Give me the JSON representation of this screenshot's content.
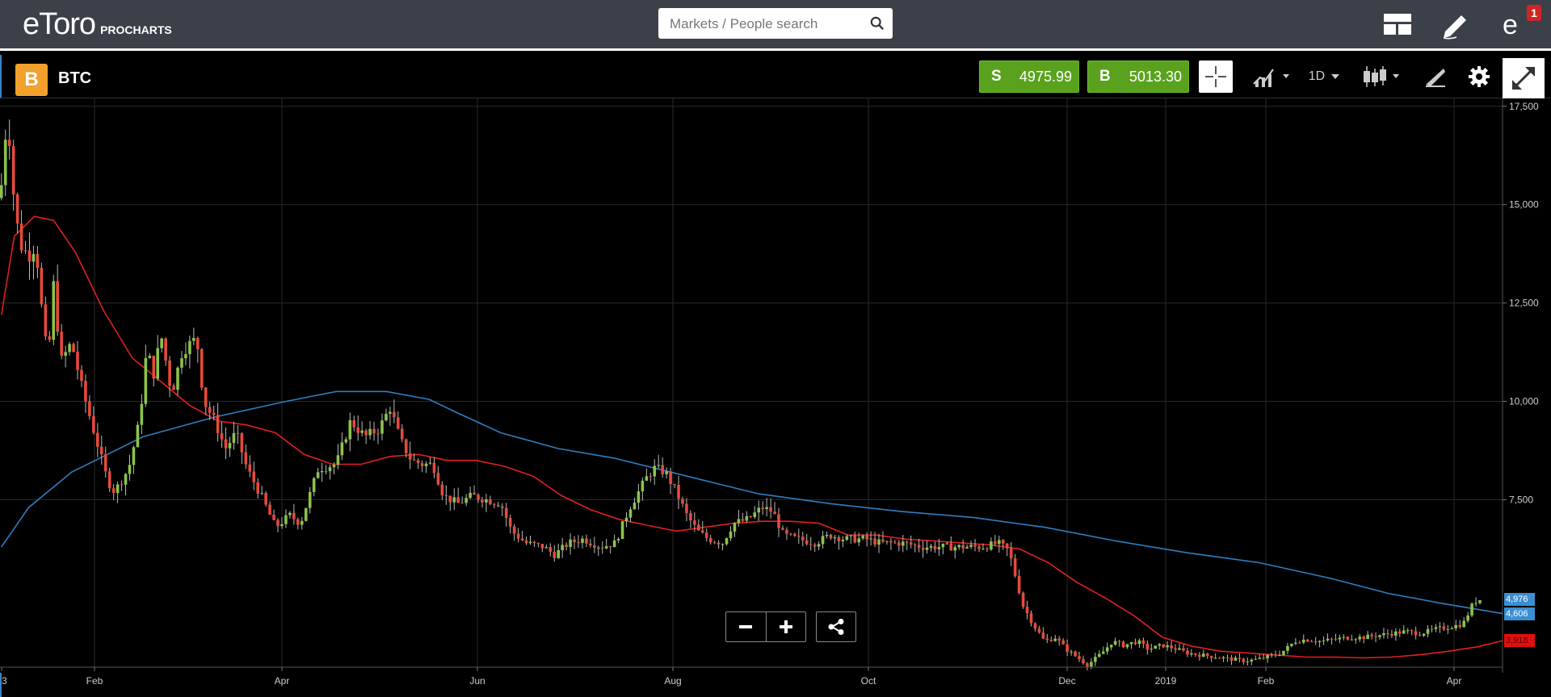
{
  "topbar": {
    "logo": "eToro",
    "logo_sub": "PROCHARTS",
    "search_placeholder": "Markets / People search",
    "notification_count": "1",
    "icons": [
      "layout-icon",
      "pencil-icon",
      "profile-icon"
    ]
  },
  "toolbar": {
    "asset_symbol_glyph": "B",
    "asset_name": "BTC",
    "sell_label": "S",
    "sell_price": "4975.99",
    "buy_label": "B",
    "buy_price": "5013.30",
    "timeframe": "1D",
    "colors": {
      "trade_green": "#5aa21e",
      "asset_orange": "#f2a12c"
    }
  },
  "chart_data": {
    "type": "candlestick",
    "x_ticks": [
      "3",
      "Feb",
      "Apr",
      "Jun",
      "Aug",
      "Oct",
      "Dec",
      "2019",
      "Feb",
      "Apr"
    ],
    "y_ticks": [
      "17,500",
      "15,000",
      "12,500",
      "10,000",
      "7,500"
    ],
    "ylim": [
      3100,
      17700
    ],
    "grid": true,
    "price_labels": {
      "last": "4,976",
      "ma_blue": "4,606",
      "ma_red": "3,918"
    },
    "colors": {
      "up": "#8bc34a",
      "down": "#e64a3a",
      "ma_blue": "#2f7ec0",
      "ma_red": "#e02020"
    },
    "ma_long": [
      [
        2,
        6300
      ],
      [
        40,
        7300
      ],
      [
        100,
        8200
      ],
      [
        200,
        9100
      ],
      [
        300,
        9600
      ],
      [
        400,
        10000
      ],
      [
        470,
        10250
      ],
      [
        540,
        10250
      ],
      [
        600,
        10050
      ],
      [
        640,
        9700
      ],
      [
        700,
        9200
      ],
      [
        780,
        8800
      ],
      [
        860,
        8550
      ],
      [
        960,
        8100
      ],
      [
        1060,
        7650
      ],
      [
        1160,
        7400
      ],
      [
        1260,
        7200
      ],
      [
        1360,
        7050
      ],
      [
        1460,
        6800
      ],
      [
        1560,
        6450
      ],
      [
        1660,
        6150
      ],
      [
        1760,
        5900
      ],
      [
        1860,
        5500
      ],
      [
        1940,
        5120
      ],
      [
        2020,
        4850
      ],
      [
        2100,
        4606
      ]
    ],
    "ma_short": [
      [
        2,
        12200
      ],
      [
        20,
        14200
      ],
      [
        48,
        14700
      ],
      [
        75,
        14600
      ],
      [
        105,
        13800
      ],
      [
        145,
        12300
      ],
      [
        185,
        11100
      ],
      [
        225,
        10500
      ],
      [
        265,
        9900
      ],
      [
        305,
        9500
      ],
      [
        345,
        9400
      ],
      [
        385,
        9200
      ],
      [
        425,
        8650
      ],
      [
        465,
        8400
      ],
      [
        505,
        8400
      ],
      [
        545,
        8600
      ],
      [
        585,
        8650
      ],
      [
        625,
        8500
      ],
      [
        665,
        8500
      ],
      [
        705,
        8350
      ],
      [
        745,
        8100
      ],
      [
        785,
        7600
      ],
      [
        825,
        7250
      ],
      [
        865,
        7000
      ],
      [
        905,
        6850
      ],
      [
        945,
        6700
      ],
      [
        985,
        6800
      ],
      [
        1025,
        6900
      ],
      [
        1065,
        6950
      ],
      [
        1105,
        6950
      ],
      [
        1145,
        6900
      ],
      [
        1185,
        6600
      ],
      [
        1225,
        6600
      ],
      [
        1265,
        6500
      ],
      [
        1305,
        6450
      ],
      [
        1345,
        6400
      ],
      [
        1385,
        6350
      ],
      [
        1425,
        6250
      ],
      [
        1465,
        5900
      ],
      [
        1505,
        5400
      ],
      [
        1545,
        5000
      ],
      [
        1585,
        4550
      ],
      [
        1625,
        4000
      ],
      [
        1665,
        3780
      ],
      [
        1705,
        3650
      ],
      [
        1745,
        3600
      ],
      [
        1785,
        3550
      ],
      [
        1825,
        3500
      ],
      [
        1865,
        3500
      ],
      [
        1905,
        3480
      ],
      [
        1945,
        3500
      ],
      [
        1985,
        3560
      ],
      [
        2025,
        3650
      ],
      [
        2065,
        3760
      ],
      [
        2100,
        3918
      ]
    ],
    "close_path": [
      [
        2,
        15500
      ],
      [
        5,
        16000
      ],
      [
        10,
        17500
      ],
      [
        20,
        15000
      ],
      [
        28,
        14000
      ],
      [
        40,
        13700
      ],
      [
        50,
        14000
      ],
      [
        60,
        12000
      ],
      [
        67,
        11000
      ],
      [
        75,
        13000
      ],
      [
        85,
        11000
      ],
      [
        100,
        11500
      ],
      [
        115,
        10300
      ],
      [
        135,
        9000
      ],
      [
        150,
        8000
      ],
      [
        160,
        7700
      ],
      [
        180,
        8300
      ],
      [
        195,
        9500
      ],
      [
        205,
        11300
      ],
      [
        215,
        10700
      ],
      [
        225,
        11700
      ],
      [
        240,
        10200
      ],
      [
        255,
        11300
      ],
      [
        275,
        11600
      ],
      [
        285,
        10000
      ],
      [
        300,
        9500
      ],
      [
        315,
        8800
      ],
      [
        330,
        9200
      ],
      [
        345,
        8300
      ],
      [
        365,
        7600
      ],
      [
        385,
        6800
      ],
      [
        405,
        7100
      ],
      [
        420,
        6900
      ],
      [
        445,
        8300
      ],
      [
        470,
        8400
      ],
      [
        490,
        9500
      ],
      [
        510,
        9100
      ],
      [
        530,
        9300
      ],
      [
        545,
        9850
      ],
      [
        560,
        9000
      ],
      [
        575,
        8500
      ],
      [
        590,
        8400
      ],
      [
        605,
        8400
      ],
      [
        620,
        7600
      ],
      [
        640,
        7400
      ],
      [
        660,
        7600
      ],
      [
        680,
        7500
      ],
      [
        700,
        7400
      ],
      [
        715,
        6700
      ],
      [
        735,
        6400
      ],
      [
        760,
        6300
      ],
      [
        775,
        6100
      ],
      [
        795,
        6400
      ],
      [
        815,
        6500
      ],
      [
        840,
        6300
      ],
      [
        860,
        6400
      ],
      [
        880,
        7300
      ],
      [
        905,
        8100
      ],
      [
        915,
        8300
      ],
      [
        930,
        8200
      ],
      [
        945,
        7700
      ],
      [
        960,
        7100
      ],
      [
        975,
        6700
      ],
      [
        990,
        6500
      ],
      [
        1010,
        6400
      ],
      [
        1025,
        6900
      ],
      [
        1045,
        7000
      ],
      [
        1065,
        7300
      ],
      [
        1080,
        7200
      ],
      [
        1095,
        6600
      ],
      [
        1115,
        6500
      ],
      [
        1140,
        6400
      ],
      [
        1160,
        6600
      ],
      [
        1180,
        6500
      ],
      [
        1210,
        6500
      ],
      [
        1230,
        6400
      ],
      [
        1260,
        6400
      ],
      [
        1290,
        6300
      ],
      [
        1320,
        6300
      ],
      [
        1350,
        6300
      ],
      [
        1375,
        6300
      ],
      [
        1395,
        6400
      ],
      [
        1410,
        6200
      ],
      [
        1420,
        5500
      ],
      [
        1430,
        4800
      ],
      [
        1445,
        4300
      ],
      [
        1460,
        3900
      ],
      [
        1475,
        4000
      ],
      [
        1490,
        3700
      ],
      [
        1505,
        3500
      ],
      [
        1520,
        3300
      ],
      [
        1540,
        3600
      ],
      [
        1555,
        3900
      ],
      [
        1570,
        3800
      ],
      [
        1590,
        3900
      ],
      [
        1605,
        3700
      ],
      [
        1625,
        3800
      ],
      [
        1645,
        3700
      ],
      [
        1660,
        3600
      ],
      [
        1680,
        3550
      ],
      [
        1700,
        3500
      ],
      [
        1720,
        3450
      ],
      [
        1740,
        3400
      ],
      [
        1760,
        3450
      ],
      [
        1770,
        3500
      ],
      [
        1790,
        3600
      ],
      [
        1810,
        3900
      ],
      [
        1825,
        3950
      ],
      [
        1845,
        3900
      ],
      [
        1865,
        3950
      ],
      [
        1885,
        4000
      ],
      [
        1905,
        4000
      ],
      [
        1925,
        4050
      ],
      [
        1945,
        4100
      ],
      [
        1965,
        4150
      ],
      [
        1985,
        4100
      ],
      [
        2005,
        4200
      ],
      [
        2020,
        4250
      ],
      [
        2035,
        4300
      ],
      [
        2045,
        4350
      ],
      [
        2060,
        4900
      ],
      [
        2070,
        4976
      ]
    ]
  }
}
